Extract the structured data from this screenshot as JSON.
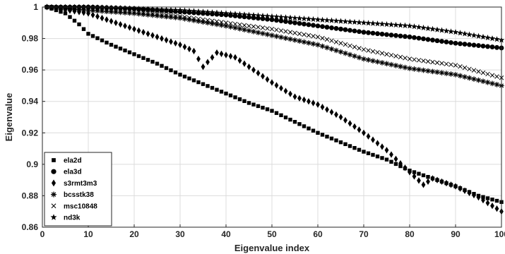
{
  "chart_data": {
    "type": "scatter",
    "title": "",
    "xlabel": "Eigenvalue index",
    "ylabel": "Eigenvalue",
    "xlim": [
      0,
      100
    ],
    "ylim": [
      0.86,
      1.0
    ],
    "xticks": [
      "0",
      "10",
      "20",
      "30",
      "40",
      "50",
      "60",
      "70",
      "80",
      "90",
      "100"
    ],
    "yticks": [
      "0.86",
      "0.88",
      "0.9",
      "0.92",
      "0.94",
      "0.96",
      "0.98",
      "1"
    ],
    "grid": true,
    "legend_position": "bottom-left",
    "series": [
      {
        "name": "ela2d",
        "marker": "square",
        "color": "#000000",
        "x": [
          1,
          5,
          8,
          10,
          15,
          20,
          25,
          30,
          35,
          40,
          45,
          50,
          55,
          60,
          65,
          70,
          75,
          80,
          85,
          90,
          95,
          100
        ],
        "y": [
          1.0,
          0.996,
          0.989,
          0.983,
          0.976,
          0.97,
          0.964,
          0.957,
          0.951,
          0.945,
          0.939,
          0.934,
          0.927,
          0.92,
          0.914,
          0.908,
          0.903,
          0.896,
          0.891,
          0.886,
          0.88,
          0.876
        ]
      },
      {
        "name": "ela3d",
        "marker": "circle",
        "color": "#000000",
        "x": [
          1,
          10,
          20,
          30,
          40,
          50,
          60,
          70,
          80,
          90,
          100
        ],
        "y": [
          1.0,
          1.0,
          0.999,
          0.997,
          0.995,
          0.992,
          0.988,
          0.984,
          0.981,
          0.977,
          0.974
        ]
      },
      {
        "name": "s3rmt3m3",
        "marker": "diamond",
        "color": "#000000",
        "x": [
          1,
          10,
          15,
          20,
          25,
          30,
          33,
          35,
          38,
          42,
          45,
          50,
          55,
          60,
          65,
          70,
          75,
          80,
          83,
          85,
          90,
          95,
          100
        ],
        "y": [
          1.0,
          0.996,
          0.991,
          0.986,
          0.981,
          0.976,
          0.972,
          0.962,
          0.971,
          0.968,
          0.962,
          0.952,
          0.943,
          0.938,
          0.93,
          0.92,
          0.909,
          0.895,
          0.887,
          0.891,
          0.886,
          0.879,
          0.87
        ]
      },
      {
        "name": "bcsstk38",
        "marker": "asterisk",
        "color": "#000000",
        "x": [
          1,
          10,
          20,
          30,
          40,
          50,
          60,
          70,
          80,
          90,
          100
        ],
        "y": [
          1.0,
          0.998,
          0.996,
          0.993,
          0.988,
          0.982,
          0.976,
          0.967,
          0.961,
          0.957,
          0.95
        ]
      },
      {
        "name": "msc10848",
        "marker": "cross",
        "color": "#000000",
        "x": [
          1,
          10,
          20,
          30,
          40,
          50,
          60,
          70,
          80,
          90,
          100
        ],
        "y": [
          1.0,
          0.999,
          0.997,
          0.994,
          0.99,
          0.986,
          0.981,
          0.973,
          0.967,
          0.963,
          0.955
        ]
      },
      {
        "name": "nd3k",
        "marker": "star",
        "color": "#000000",
        "x": [
          1,
          10,
          20,
          30,
          40,
          50,
          60,
          70,
          80,
          90,
          100
        ],
        "y": [
          1.0,
          1.0,
          0.999,
          0.998,
          0.996,
          0.994,
          0.992,
          0.99,
          0.988,
          0.984,
          0.979
        ]
      }
    ]
  }
}
